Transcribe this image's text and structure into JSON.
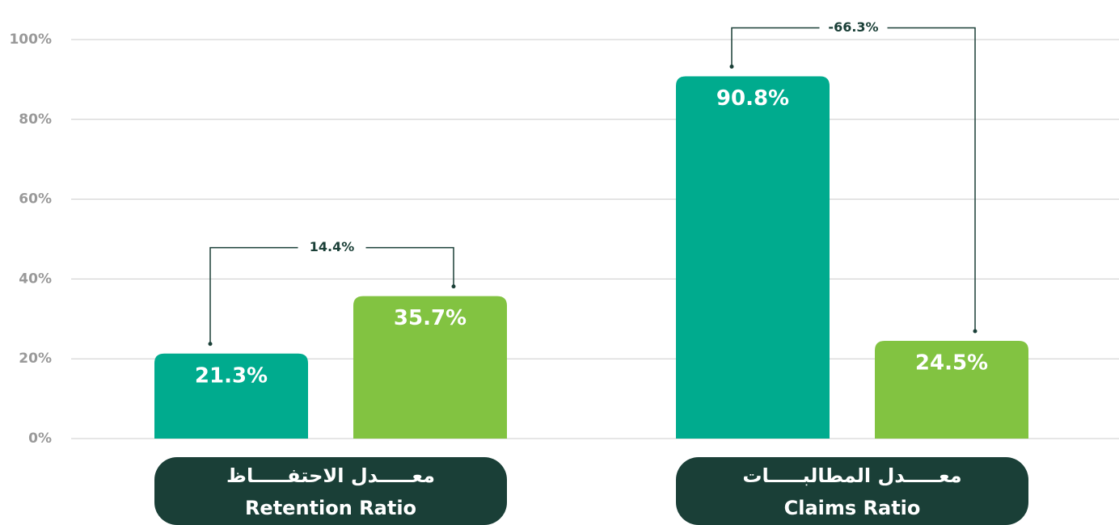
{
  "chart_data": {
    "type": "bar",
    "categories": [
      "Retention Ratio",
      "Claims Ratio"
    ],
    "categories_ar": [
      "معـــــدل الاحتفـــــاظ",
      "معـــــدل المطالبـــــات"
    ],
    "series": [
      {
        "color": "#00ab8e",
        "values": [
          21.3,
          90.8
        ],
        "value_labels": [
          "21.3%",
          "90.8%"
        ]
      },
      {
        "color": "#82c341",
        "values": [
          35.7,
          24.5
        ],
        "value_labels": [
          "35.7%",
          "24.5%"
        ]
      }
    ],
    "annotations": [
      {
        "text": "14.4%"
      },
      {
        "text": "-66.3%"
      }
    ],
    "ylim": [
      0,
      100
    ],
    "yticks": [
      {
        "value": 0,
        "label": "0%"
      },
      {
        "value": 20,
        "label": "20%"
      },
      {
        "value": 40,
        "label": "40%"
      },
      {
        "value": 60,
        "label": "60%"
      },
      {
        "value": 80,
        "label": "80%"
      },
      {
        "value": 100,
        "label": "100%"
      }
    ],
    "grid": true
  }
}
